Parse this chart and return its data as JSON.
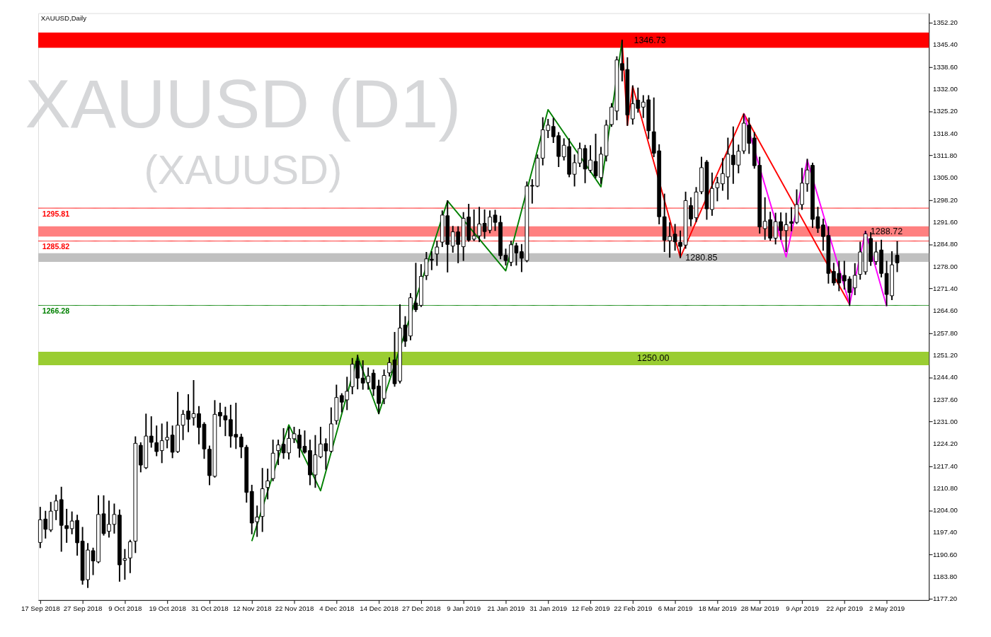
{
  "chart_data": {
    "type": "candlestick",
    "title": "XAUUSD,Daily",
    "annotations": [
      "XAUUSD (D1)",
      "(XAUUSD)"
    ],
    "categories": [
      "17 Sep 2018",
      null,
      null,
      null,
      null,
      null,
      null,
      null,
      "27 Sep 2018",
      null,
      null,
      null,
      null,
      null,
      null,
      null,
      "9 Oct 2018",
      null,
      null,
      null,
      null,
      null,
      null,
      null,
      "19 Oct 2018",
      null,
      null,
      null,
      null,
      null,
      null,
      null,
      "31 Oct 2018",
      null,
      null,
      null,
      null,
      null,
      null,
      null,
      "12 Nov 2018",
      null,
      null,
      null,
      null,
      null,
      null,
      null,
      "22 Nov 2018",
      null,
      null,
      null,
      null,
      null,
      null,
      null,
      "4 Dec 2018",
      null,
      null,
      null,
      null,
      null,
      null,
      null,
      "14 Dec 2018",
      null,
      null,
      null,
      null,
      null,
      null,
      null,
      "27 Dec 2018",
      null,
      null,
      null,
      null,
      null,
      null,
      null,
      "9 Jan 2019",
      null,
      null,
      null,
      null,
      null,
      null,
      null,
      "21 Jan 2019",
      null,
      null,
      null,
      null,
      null,
      null,
      null,
      "31 Jan 2019",
      null,
      null,
      null,
      null,
      null,
      null,
      null,
      "12 Feb 2019",
      null,
      null,
      null,
      null,
      null,
      null,
      null,
      "22 Feb 2019",
      null,
      null,
      null,
      null,
      null,
      null,
      null,
      "6 Mar 2019",
      null,
      null,
      null,
      null,
      null,
      null,
      null,
      "18 Mar 2019",
      null,
      null,
      null,
      null,
      null,
      null,
      null,
      "28 Mar 2019",
      null,
      null,
      null,
      null,
      null,
      null,
      null,
      "9 Apr 2019",
      null,
      null,
      null,
      null,
      null,
      null,
      null,
      "22 Apr 2019",
      null,
      null,
      null,
      null,
      null,
      null,
      null,
      "2 May 2019",
      null,
      null
    ],
    "ohlc": [
      [
        1194.3,
        1204.9,
        1192.8,
        1201.2
      ],
      [
        1201.4,
        1203.7,
        1195.7,
        1198.3
      ],
      [
        1198.1,
        1206.4,
        1197.7,
        1203.8
      ],
      [
        1204.0,
        1208.6,
        1201.3,
        1206.9
      ],
      [
        1207.3,
        1211.0,
        1191.7,
        1199.5
      ],
      [
        1199.4,
        1204.3,
        1194.4,
        1198.5
      ],
      [
        1198.5,
        1203.5,
        1197.0,
        1200.8
      ],
      [
        1201.0,
        1202.5,
        1190.5,
        1194.2
      ],
      [
        1194.7,
        1198.8,
        1181.7,
        1182.8
      ],
      [
        1183.0,
        1193.9,
        1180.7,
        1192.0
      ],
      [
        1191.8,
        1192.5,
        1184.6,
        1188.7
      ],
      [
        1188.4,
        1208.4,
        1188.2,
        1202.8
      ],
      [
        1203.0,
        1208.4,
        1196.6,
        1197.0
      ],
      [
        1197.7,
        1206.8,
        1196.0,
        1199.8
      ],
      [
        1199.8,
        1205.9,
        1197.2,
        1202.8
      ],
      [
        1202.6,
        1204.1,
        1182.6,
        1187.5
      ],
      [
        1188.9,
        1192.1,
        1183.2,
        1189.4
      ],
      [
        1189.6,
        1194.9,
        1185.2,
        1194.5
      ],
      [
        1194.7,
        1226.3,
        1191.3,
        1224.4
      ],
      [
        1223.8,
        1224.5,
        1215.8,
        1217.8
      ],
      [
        1217.0,
        1233.2,
        1216.8,
        1226.6
      ],
      [
        1226.6,
        1232.4,
        1223.3,
        1224.7
      ],
      [
        1224.6,
        1229.6,
        1220.7,
        1221.9
      ],
      [
        1222.2,
        1230.2,
        1218.6,
        1225.2
      ],
      [
        1225.4,
        1230.8,
        1223.1,
        1226.2
      ],
      [
        1226.9,
        1229.6,
        1220.1,
        1221.7
      ],
      [
        1221.9,
        1239.8,
        1221.7,
        1229.9
      ],
      [
        1229.9,
        1234.3,
        1225.6,
        1233.2
      ],
      [
        1234.2,
        1239.1,
        1228.0,
        1231.7
      ],
      [
        1232.2,
        1243.4,
        1230.0,
        1233.4
      ],
      [
        1233.4,
        1235.5,
        1224.3,
        1229.2
      ],
      [
        1230.2,
        1230.6,
        1219.9,
        1222.7
      ],
      [
        1222.6,
        1223.5,
        1211.9,
        1214.6
      ],
      [
        1214.4,
        1237.3,
        1214.2,
        1233.2
      ],
      [
        1233.8,
        1236.5,
        1229.6,
        1232.7
      ],
      [
        1232.8,
        1235.3,
        1226.8,
        1231.5
      ],
      [
        1231.6,
        1235.9,
        1223.3,
        1226.6
      ],
      [
        1227.1,
        1236.5,
        1222.9,
        1226.3
      ],
      [
        1226.3,
        1227.1,
        1220.1,
        1223.3
      ],
      [
        1223.2,
        1223.7,
        1206.6,
        1209.5
      ],
      [
        1209.8,
        1211.6,
        1197.0,
        1200.2
      ],
      [
        1200.6,
        1205.3,
        1196.2,
        1202.0
      ],
      [
        1202.2,
        1216.7,
        1197.7,
        1210.6
      ],
      [
        1211.0,
        1216.5,
        1207.6,
        1213.0
      ],
      [
        1213.7,
        1225.3,
        1213.1,
        1221.4
      ],
      [
        1222.2,
        1225.3,
        1218.0,
        1223.9
      ],
      [
        1224.1,
        1228.8,
        1219.9,
        1221.5
      ],
      [
        1221.5,
        1229.2,
        1219.7,
        1225.9
      ],
      [
        1225.8,
        1229.2,
        1224.7,
        1227.3
      ],
      [
        1226.9,
        1228.5,
        1220.3,
        1222.9
      ],
      [
        1223.5,
        1228.1,
        1221.5,
        1221.7
      ],
      [
        1222.2,
        1225.3,
        1211.9,
        1214.8
      ],
      [
        1214.8,
        1226.7,
        1211.1,
        1220.9
      ],
      [
        1220.3,
        1229.2,
        1220.1,
        1224.2
      ],
      [
        1224.3,
        1225.7,
        1216.6,
        1222.1
      ],
      [
        1222.0,
        1235.1,
        1221.8,
        1230.3
      ],
      [
        1231.3,
        1242.0,
        1230.3,
        1238.3
      ],
      [
        1238.9,
        1239.4,
        1234.0,
        1236.9
      ],
      [
        1237.6,
        1244.4,
        1234.7,
        1240.2
      ],
      [
        1241.6,
        1250.1,
        1239.5,
        1248.4
      ],
      [
        1249.4,
        1251.1,
        1241.0,
        1244.2
      ],
      [
        1244.2,
        1249.4,
        1240.9,
        1242.7
      ],
      [
        1242.9,
        1247.2,
        1240.9,
        1244.8
      ],
      [
        1245.7,
        1246.6,
        1239.0,
        1240.9
      ],
      [
        1241.8,
        1243.5,
        1233.5,
        1236.5
      ],
      [
        1238.0,
        1246.6,
        1236.5,
        1245.0
      ],
      [
        1245.8,
        1250.3,
        1244.9,
        1248.9
      ],
      [
        1249.7,
        1258.0,
        1241.8,
        1242.5
      ],
      [
        1243.3,
        1266.4,
        1242.8,
        1259.4
      ],
      [
        1260.3,
        1262.8,
        1253.9,
        1255.4
      ],
      [
        1257.0,
        1269.8,
        1255.9,
        1268.6
      ],
      [
        1267.0,
        1279.0,
        1264.5,
        1265.0
      ],
      [
        1266.3,
        1278.6,
        1266.0,
        1275.1
      ],
      [
        1275.3,
        1282.3,
        1274.2,
        1280.4
      ],
      [
        1280.3,
        1282.5,
        1277.2,
        1280.0
      ],
      [
        1281.9,
        1285.7,
        1278.5,
        1284.0
      ],
      [
        1285.5,
        1294.9,
        1284.2,
        1293.7
      ],
      [
        1293.5,
        1298.0,
        1276.5,
        1284.8
      ],
      [
        1284.3,
        1290.2,
        1282.5,
        1288.6
      ],
      [
        1288.6,
        1290.1,
        1279.3,
        1284.8
      ],
      [
        1284.1,
        1294.4,
        1280.0,
        1292.7
      ],
      [
        1293.1,
        1296.9,
        1285.8,
        1286.1
      ],
      [
        1286.4,
        1295.2,
        1286.0,
        1287.4
      ],
      [
        1287.4,
        1296.0,
        1285.7,
        1291.0
      ],
      [
        1291.2,
        1295.2,
        1286.7,
        1288.7
      ],
      [
        1289.1,
        1294.9,
        1288.4,
        1293.1
      ],
      [
        1293.7,
        1295.1,
        1289.1,
        1291.5
      ],
      [
        1291.5,
        1293.3,
        1280.5,
        1281.4
      ],
      [
        1281.5,
        1283.3,
        1278.6,
        1279.9
      ],
      [
        1279.4,
        1285.7,
        1278.4,
        1284.7
      ],
      [
        1284.4,
        1285.1,
        1278.6,
        1282.2
      ],
      [
        1282.6,
        1284.7,
        1276.6,
        1280.6
      ],
      [
        1279.9,
        1303.7,
        1279.6,
        1302.5
      ],
      [
        1302.7,
        1304.4,
        1297.4,
        1302.5
      ],
      [
        1302.5,
        1311.9,
        1302.4,
        1311.0
      ],
      [
        1311.0,
        1323.2,
        1309.0,
        1319.6
      ],
      [
        1319.4,
        1322.7,
        1317.3,
        1321.0
      ],
      [
        1320.6,
        1323.0,
        1315.8,
        1317.5
      ],
      [
        1317.8,
        1318.7,
        1308.5,
        1311.5
      ],
      [
        1311.4,
        1316.8,
        1310.5,
        1314.9
      ],
      [
        1314.5,
        1316.8,
        1305.4,
        1306.1
      ],
      [
        1306.1,
        1311.9,
        1302.6,
        1309.6
      ],
      [
        1309.5,
        1315.5,
        1308.5,
        1313.9
      ],
      [
        1313.9,
        1314.8,
        1303.6,
        1307.7
      ],
      [
        1307.3,
        1314.7,
        1306.8,
        1310.4
      ],
      [
        1310.0,
        1318.2,
        1305.1,
        1305.6
      ],
      [
        1305.1,
        1314.2,
        1303.4,
        1312.2
      ],
      [
        1311.7,
        1322.4,
        1310.2,
        1321.0
      ],
      [
        1321.2,
        1327.5,
        1320.7,
        1326.5
      ],
      [
        1325.3,
        1341.7,
        1322.7,
        1340.8
      ],
      [
        1339.7,
        1346.73,
        1334.5,
        1337.7
      ],
      [
        1337.9,
        1341.4,
        1321.0,
        1324.1
      ],
      [
        1322.9,
        1332.9,
        1321.4,
        1327.5
      ],
      [
        1328.6,
        1332.2,
        1325.0,
        1326.1
      ],
      [
        1326.5,
        1329.9,
        1323.4,
        1328.0
      ],
      [
        1328.7,
        1329.9,
        1317.0,
        1319.3
      ],
      [
        1319.0,
        1329.2,
        1311.5,
        1312.5
      ],
      [
        1313.2,
        1315.0,
        1291.1,
        1293.2
      ],
      [
        1293.2,
        1300.0,
        1282.7,
        1286.1
      ],
      [
        1285.9,
        1291.3,
        1281.0,
        1287.2
      ],
      [
        1287.9,
        1290.8,
        1283.1,
        1285.6
      ],
      [
        1285.4,
        1288.8,
        1280.85,
        1284.2
      ],
      [
        1284.6,
        1300.6,
        1283.7,
        1298.1
      ],
      [
        1296.6,
        1298.9,
        1290.5,
        1292.5
      ],
      [
        1292.9,
        1302.0,
        1291.8,
        1300.7
      ],
      [
        1300.8,
        1311.2,
        1300.3,
        1308.1
      ],
      [
        1309.8,
        1310.2,
        1292.5,
        1295.6
      ],
      [
        1295.4,
        1306.4,
        1293.7,
        1301.8
      ],
      [
        1302.0,
        1305.1,
        1298.1,
        1303.5
      ],
      [
        1303.2,
        1310.8,
        1301.3,
        1306.3
      ],
      [
        1305.3,
        1317.0,
        1298.6,
        1312.2
      ],
      [
        1311.9,
        1320.4,
        1303.4,
        1309.0
      ],
      [
        1308.9,
        1314.9,
        1306.6,
        1313.1
      ],
      [
        1313.2,
        1324.3,
        1312.5,
        1321.6
      ],
      [
        1321.0,
        1323.1,
        1312.5,
        1315.5
      ],
      [
        1317.1,
        1318.7,
        1308.0,
        1308.7
      ],
      [
        1308.8,
        1311.2,
        1288.3,
        1290.1
      ],
      [
        1289.6,
        1298.9,
        1286.4,
        1291.8
      ],
      [
        1292.3,
        1294.5,
        1286.1,
        1286.7
      ],
      [
        1286.7,
        1294.2,
        1285.0,
        1291.7
      ],
      [
        1291.7,
        1294.3,
        1286.4,
        1289.0
      ],
      [
        1289.0,
        1294.2,
        1282.7,
        1290.8
      ],
      [
        1291.7,
        1295.9,
        1289.0,
        1291.2
      ],
      [
        1291.5,
        1301.3,
        1291.2,
        1296.9
      ],
      [
        1296.9,
        1307.8,
        1295.5,
        1303.4
      ],
      [
        1303.2,
        1310.6,
        1301.0,
        1307.4
      ],
      [
        1308.8,
        1309.4,
        1290.0,
        1292.4
      ],
      [
        1293.2,
        1296.0,
        1288.5,
        1289.7
      ],
      [
        1290.7,
        1292.4,
        1283.1,
        1287.2
      ],
      [
        1287.5,
        1290.1,
        1273.1,
        1276.0
      ],
      [
        1276.6,
        1279.0,
        1272.5,
        1273.1
      ],
      [
        1276.0,
        1279.6,
        1270.8,
        1273.1
      ],
      [
        1275.4,
        1279.6,
        1271.3,
        1273.7
      ],
      [
        1274.3,
        1274.9,
        1266.3,
        1270.2
      ],
      [
        1271.6,
        1278.9,
        1269.6,
        1275.4
      ],
      [
        1275.7,
        1285.4,
        1274.3,
        1282.5
      ],
      [
        1276.5,
        1288.72,
        1275.8,
        1288.0
      ],
      [
        1286.6,
        1288.3,
        1278.5,
        1279.6
      ],
      [
        1279.6,
        1285.4,
        1278.8,
        1282.5
      ],
      [
        1283.1,
        1286.0,
        1275.0,
        1276.0
      ],
      [
        1276.0,
        1279.6,
        1266.3,
        1269.6
      ],
      [
        1269.2,
        1282.5,
        1268.1,
        1278.6
      ],
      [
        1281.5,
        1285.6,
        1276.6,
        1279.2
      ]
    ],
    "series": [
      {
        "type": "line",
        "color": "#008000",
        "values": [
          null,
          null,
          null,
          null,
          null,
          null,
          null,
          null,
          null,
          null,
          null,
          null,
          null,
          null,
          null,
          null,
          null,
          null,
          null,
          null,
          null,
          null,
          null,
          null,
          null,
          null,
          null,
          null,
          null,
          null,
          null,
          null,
          null,
          null,
          null,
          null,
          null,
          null,
          null,
          null,
          1194.7,
          null,
          null,
          null,
          null,
          null,
          null,
          1230.0,
          null,
          null,
          null,
          null,
          null,
          1210.0,
          null,
          null,
          null,
          null,
          null,
          null,
          1250.8,
          null,
          null,
          null,
          1233.4,
          null,
          null,
          null,
          null,
          null,
          null,
          null,
          null,
          null,
          null,
          null,
          null,
          1298.0,
          null,
          null,
          null,
          null,
          null,
          null,
          null,
          null,
          null,
          null,
          1276.8,
          null,
          null,
          null,
          null,
          null,
          null,
          null,
          1325.7,
          null,
          null,
          null,
          null,
          null,
          null,
          null,
          null,
          null,
          1302.3,
          null,
          null,
          null,
          1346.73,
          null,
          null,
          null,
          null,
          null,
          null,
          null,
          null,
          null,
          null,
          null,
          null,
          null,
          null,
          null,
          null,
          null,
          null,
          null,
          null,
          null,
          null,
          null,
          null,
          null,
          null,
          null,
          null,
          null,
          null,
          null,
          null,
          null,
          null,
          null,
          null,
          null,
          null,
          null,
          null,
          null,
          null,
          null,
          null,
          null,
          null,
          null,
          null,
          null,
          null,
          null,
          null
        ]
      },
      {
        "type": "line",
        "color": "#ff0000",
        "values": [
          null,
          null,
          null,
          null,
          null,
          null,
          null,
          null,
          null,
          null,
          null,
          null,
          null,
          null,
          null,
          null,
          null,
          null,
          null,
          null,
          null,
          null,
          null,
          null,
          null,
          null,
          null,
          null,
          null,
          null,
          null,
          null,
          null,
          null,
          null,
          null,
          null,
          null,
          null,
          null,
          null,
          null,
          null,
          null,
          null,
          null,
          null,
          null,
          null,
          null,
          null,
          null,
          null,
          null,
          null,
          null,
          null,
          null,
          null,
          null,
          null,
          null,
          null,
          null,
          null,
          null,
          null,
          null,
          null,
          null,
          null,
          null,
          null,
          null,
          null,
          null,
          null,
          null,
          null,
          null,
          null,
          null,
          null,
          null,
          null,
          null,
          null,
          null,
          null,
          null,
          null,
          null,
          null,
          null,
          null,
          null,
          null,
          null,
          null,
          null,
          null,
          null,
          null,
          null,
          null,
          null,
          null,
          null,
          null,
          null,
          1346.73,
          1321.0,
          1332.8,
          null,
          null,
          null,
          null,
          null,
          null,
          null,
          null,
          1280.85,
          null,
          null,
          null,
          null,
          null,
          null,
          null,
          null,
          null,
          null,
          null,
          1324.5,
          null,
          null,
          null,
          null,
          null,
          null,
          null,
          null,
          null,
          null,
          null,
          null,
          null,
          null,
          null,
          null,
          null,
          null,
          null,
          1266.6,
          null,
          null,
          null,
          null,
          null,
          null,
          null,
          null,
          null
        ]
      },
      {
        "type": "line",
        "color": "#ff00ff",
        "values": [
          null,
          null,
          null,
          null,
          null,
          null,
          null,
          null,
          null,
          null,
          null,
          null,
          null,
          null,
          null,
          null,
          null,
          null,
          null,
          null,
          null,
          null,
          null,
          null,
          null,
          null,
          null,
          null,
          null,
          null,
          null,
          null,
          null,
          null,
          null,
          null,
          null,
          null,
          null,
          null,
          null,
          null,
          null,
          null,
          null,
          null,
          null,
          null,
          null,
          null,
          null,
          null,
          null,
          null,
          null,
          null,
          null,
          null,
          null,
          null,
          null,
          null,
          null,
          null,
          null,
          null,
          null,
          null,
          null,
          null,
          null,
          null,
          null,
          null,
          null,
          null,
          null,
          null,
          null,
          null,
          null,
          null,
          null,
          null,
          null,
          null,
          null,
          null,
          null,
          null,
          null,
          null,
          null,
          null,
          null,
          null,
          null,
          null,
          null,
          null,
          null,
          null,
          null,
          null,
          null,
          null,
          null,
          null,
          null,
          null,
          null,
          null,
          null,
          null,
          null,
          null,
          null,
          null,
          null,
          null,
          null,
          null,
          null,
          null,
          null,
          null,
          null,
          null,
          null,
          null,
          null,
          null,
          null,
          1324.5,
          null,
          null,
          null,
          null,
          null,
          null,
          null,
          1281.0,
          null,
          null,
          null,
          1310.4,
          null,
          null,
          null,
          null,
          null,
          null,
          null,
          1266.6,
          null,
          null,
          1288.72,
          null,
          null,
          null,
          1266.0,
          null,
          null
        ]
      }
    ],
    "ylim": [
      1176.8,
      1355.0
    ],
    "yticks": [
      {
        "value": 1177.2,
        "label": "1177.20"
      },
      {
        "value": 1183.8,
        "label": "1183.80"
      },
      {
        "value": 1190.6,
        "label": "1190.60"
      },
      {
        "value": 1197.4,
        "label": "1197.40"
      },
      {
        "value": 1204.0,
        "label": "1204.00"
      },
      {
        "value": 1210.8,
        "label": "1210.80"
      },
      {
        "value": 1217.4,
        "label": "1217.40"
      },
      {
        "value": 1224.2,
        "label": "1224.20"
      },
      {
        "value": 1231.0,
        "label": "1231.00"
      },
      {
        "value": 1237.6,
        "label": "1237.60"
      },
      {
        "value": 1244.4,
        "label": "1244.40"
      },
      {
        "value": 1251.2,
        "label": "1251.20"
      },
      {
        "value": 1257.8,
        "label": "1257.80"
      },
      {
        "value": 1264.6,
        "label": "1264.60"
      },
      {
        "value": 1271.4,
        "label": "1271.40"
      },
      {
        "value": 1278.0,
        "label": "1278.00"
      },
      {
        "value": 1284.8,
        "label": "1284.80"
      },
      {
        "value": 1291.6,
        "label": "1291.60"
      },
      {
        "value": 1298.2,
        "label": "1298.20"
      },
      {
        "value": 1305.0,
        "label": "1305.00"
      },
      {
        "value": 1311.8,
        "label": "1311.80"
      },
      {
        "value": 1318.4,
        "label": "1318.40"
      },
      {
        "value": 1325.2,
        "label": "1325.20"
      },
      {
        "value": 1332.0,
        "label": "1332.00"
      },
      {
        "value": 1338.6,
        "label": "1338.60"
      },
      {
        "value": 1345.4,
        "label": "1345.40"
      },
      {
        "value": 1352.2,
        "label": "1352.20"
      }
    ],
    "ref_lines": [
      {
        "axis": "y",
        "value": 1295.81,
        "label": "1295.81",
        "color": "#ff0000"
      },
      {
        "axis": "y",
        "value": 1285.82,
        "label": "1285.82",
        "color": "#ff0000"
      },
      {
        "axis": "y",
        "value": 1266.28,
        "label": "1266.28",
        "color": "#008000"
      }
    ],
    "bands": [
      {
        "axis": "y",
        "from": 1344.5,
        "to": 1349.1,
        "label": "1346.73",
        "color": "#ff0000"
      },
      {
        "axis": "y",
        "from": 1287.2,
        "to": 1290.3,
        "label": "1288.72",
        "color": "#ff8080"
      },
      {
        "axis": "y",
        "from": 1279.5,
        "to": 1282.1,
        "label": "1280.85",
        "color": "#c0c0c0"
      },
      {
        "axis": "y",
        "from": 1248.1,
        "to": 1252.2,
        "label": "1250.00",
        "color": "#9acd32"
      }
    ]
  }
}
